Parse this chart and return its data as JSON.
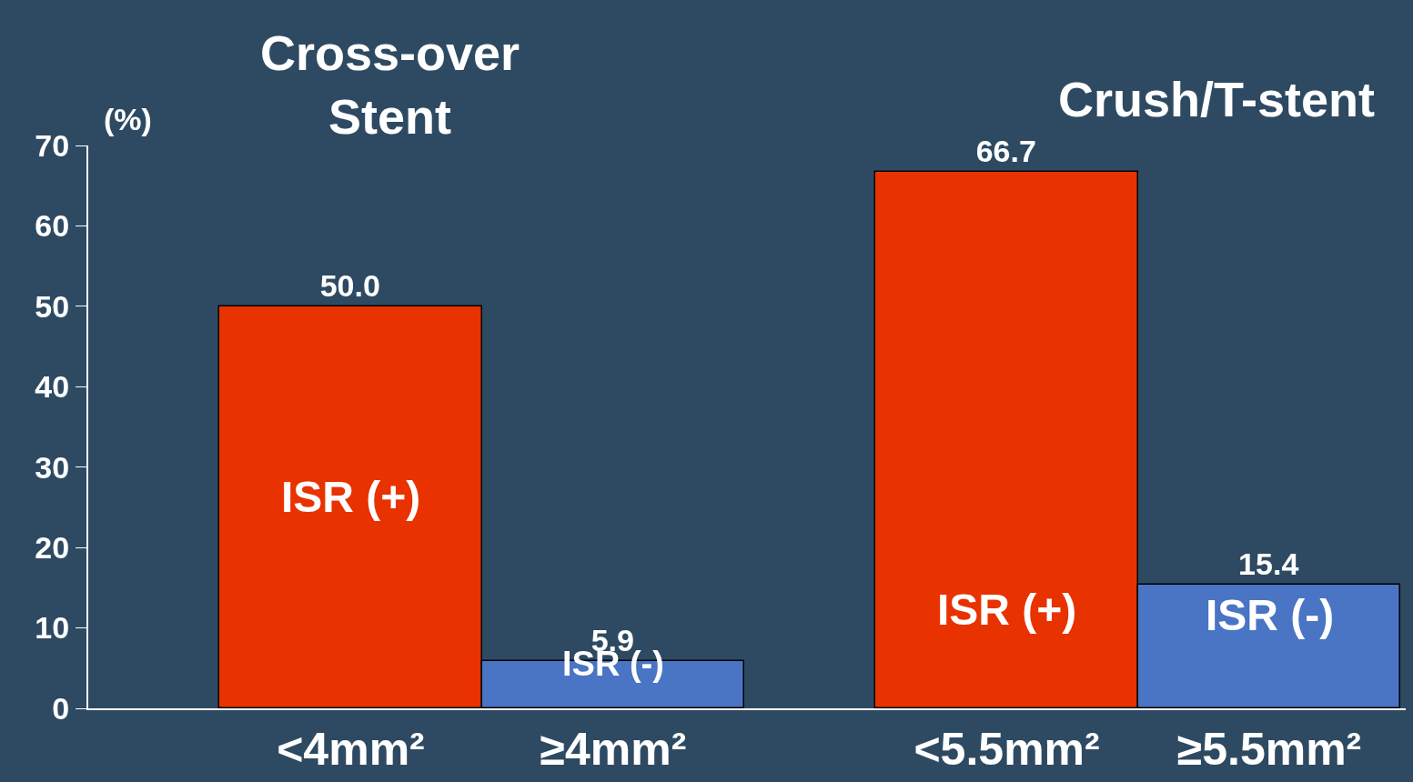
{
  "chart_data": {
    "type": "bar",
    "ylabel": "(%)",
    "categories": [
      "<4mm²",
      "≥4mm²",
      "<5.5mm²",
      "≥5.5mm²"
    ],
    "values": [
      50.0,
      5.9,
      66.7,
      15.4
    ],
    "value_labels": [
      "50.0",
      "5.9",
      "66.7",
      "15.4"
    ],
    "colors": [
      "#e83200",
      "#4a74c4",
      "#e83200",
      "#4a74c4"
    ],
    "ylim": [
      0,
      70
    ],
    "yticks": [
      0,
      10,
      20,
      30,
      40,
      50,
      60,
      70
    ],
    "grid": false,
    "legend": false,
    "annotations": [
      "Cross-over\nStent",
      "Crush/T-stent",
      "ISR (+)",
      "ISR (-)",
      "ISR (+)",
      "ISR (-)"
    ]
  }
}
